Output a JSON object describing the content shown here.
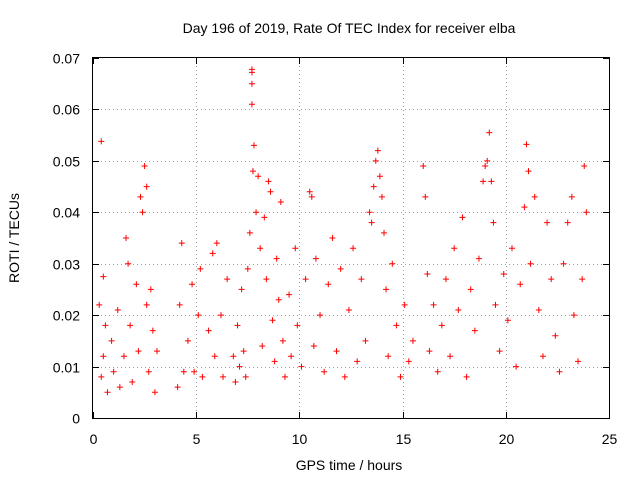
{
  "chart_data": {
    "type": "scatter",
    "title": "Day 196 of 2019, Rate Of TEC Index for receiver elba",
    "xlabel": "GPS time / hours",
    "ylabel": "ROTI / TECUs",
    "xlim": [
      0,
      25
    ],
    "ylim": [
      0,
      0.07
    ],
    "x_ticks": [
      0,
      5,
      10,
      15,
      20,
      25
    ],
    "x_tick_labels": [
      "0",
      "5",
      "10",
      "15",
      "20",
      "25"
    ],
    "y_ticks": [
      0,
      0.01,
      0.02,
      0.03,
      0.04,
      0.05,
      0.06,
      0.07
    ],
    "y_tick_labels": [
      "0",
      "0.01",
      "0.02",
      "0.03",
      "0.04",
      "0.05",
      "0.06",
      "0.07"
    ],
    "grid": true,
    "marker": "plus",
    "color": "#ff0000",
    "series": [
      {
        "name": "ROTI",
        "points": [
          [
            0.3,
            0.022
          ],
          [
            0.4,
            0.0538
          ],
          [
            0.5,
            0.0275
          ],
          [
            0.4,
            0.008
          ],
          [
            0.5,
            0.012
          ],
          [
            0.6,
            0.018
          ],
          [
            0.7,
            0.005
          ],
          [
            0.9,
            0.015
          ],
          [
            1.0,
            0.009
          ],
          [
            1.2,
            0.021
          ],
          [
            1.3,
            0.006
          ],
          [
            1.5,
            0.012
          ],
          [
            1.6,
            0.035
          ],
          [
            1.7,
            0.03
          ],
          [
            1.8,
            0.018
          ],
          [
            1.9,
            0.007
          ],
          [
            2.1,
            0.026
          ],
          [
            2.2,
            0.013
          ],
          [
            2.3,
            0.043
          ],
          [
            2.4,
            0.04
          ],
          [
            2.5,
            0.049
          ],
          [
            2.6,
            0.045
          ],
          [
            2.6,
            0.022
          ],
          [
            2.7,
            0.009
          ],
          [
            2.8,
            0.025
          ],
          [
            2.9,
            0.017
          ],
          [
            3.0,
            0.005
          ],
          [
            3.1,
            0.013
          ],
          [
            4.1,
            0.006
          ],
          [
            4.2,
            0.022
          ],
          [
            4.3,
            0.034
          ],
          [
            4.4,
            0.009
          ],
          [
            4.6,
            0.015
          ],
          [
            4.8,
            0.026
          ],
          [
            4.9,
            0.009
          ],
          [
            5.1,
            0.02
          ],
          [
            5.2,
            0.029
          ],
          [
            5.3,
            0.008
          ],
          [
            5.6,
            0.017
          ],
          [
            5.8,
            0.032
          ],
          [
            5.9,
            0.012
          ],
          [
            6.0,
            0.034
          ],
          [
            6.2,
            0.02
          ],
          [
            6.3,
            0.008
          ],
          [
            6.5,
            0.027
          ],
          [
            6.8,
            0.012
          ],
          [
            6.9,
            0.007
          ],
          [
            7.0,
            0.018
          ],
          [
            7.1,
            0.01
          ],
          [
            7.2,
            0.025
          ],
          [
            7.3,
            0.013
          ],
          [
            7.4,
            0.008
          ],
          [
            7.5,
            0.029
          ],
          [
            7.6,
            0.036
          ],
          [
            7.7,
            0.0678
          ],
          [
            7.7,
            0.0672
          ],
          [
            7.7,
            0.065
          ],
          [
            7.7,
            0.061
          ],
          [
            7.8,
            0.053
          ],
          [
            7.75,
            0.048
          ],
          [
            7.9,
            0.04
          ],
          [
            8.0,
            0.047
          ],
          [
            8.1,
            0.033
          ],
          [
            8.2,
            0.014
          ],
          [
            8.3,
            0.039
          ],
          [
            8.4,
            0.027
          ],
          [
            8.5,
            0.046
          ],
          [
            8.6,
            0.044
          ],
          [
            8.7,
            0.019
          ],
          [
            8.8,
            0.011
          ],
          [
            8.9,
            0.031
          ],
          [
            9.0,
            0.023
          ],
          [
            9.1,
            0.042
          ],
          [
            9.2,
            0.015
          ],
          [
            9.3,
            0.008
          ],
          [
            9.5,
            0.024
          ],
          [
            9.6,
            0.012
          ],
          [
            9.8,
            0.033
          ],
          [
            9.9,
            0.018
          ],
          [
            10.1,
            0.01
          ],
          [
            10.3,
            0.027
          ],
          [
            10.5,
            0.044
          ],
          [
            10.6,
            0.043
          ],
          [
            10.7,
            0.014
          ],
          [
            10.8,
            0.031
          ],
          [
            11.0,
            0.02
          ],
          [
            11.2,
            0.009
          ],
          [
            11.4,
            0.026
          ],
          [
            11.6,
            0.035
          ],
          [
            11.8,
            0.013
          ],
          [
            12.0,
            0.029
          ],
          [
            12.2,
            0.008
          ],
          [
            12.4,
            0.021
          ],
          [
            12.6,
            0.033
          ],
          [
            12.8,
            0.011
          ],
          [
            13.0,
            0.027
          ],
          [
            13.2,
            0.015
          ],
          [
            13.4,
            0.04
          ],
          [
            13.5,
            0.038
          ],
          [
            13.6,
            0.045
          ],
          [
            13.7,
            0.05
          ],
          [
            13.8,
            0.052
          ],
          [
            13.9,
            0.047
          ],
          [
            14.0,
            0.043
          ],
          [
            14.1,
            0.036
          ],
          [
            14.2,
            0.025
          ],
          [
            14.3,
            0.012
          ],
          [
            14.5,
            0.03
          ],
          [
            14.7,
            0.018
          ],
          [
            14.9,
            0.008
          ],
          [
            15.1,
            0.022
          ],
          [
            15.3,
            0.011
          ],
          [
            15.5,
            0.015
          ],
          [
            16.0,
            0.049
          ],
          [
            16.1,
            0.043
          ],
          [
            16.2,
            0.028
          ],
          [
            16.3,
            0.013
          ],
          [
            16.5,
            0.022
          ],
          [
            16.7,
            0.009
          ],
          [
            16.9,
            0.018
          ],
          [
            17.1,
            0.027
          ],
          [
            17.3,
            0.012
          ],
          [
            17.5,
            0.033
          ],
          [
            17.7,
            0.021
          ],
          [
            17.9,
            0.039
          ],
          [
            18.1,
            0.008
          ],
          [
            18.3,
            0.025
          ],
          [
            18.5,
            0.017
          ],
          [
            18.7,
            0.031
          ],
          [
            18.9,
            0.046
          ],
          [
            19.0,
            0.049
          ],
          [
            19.1,
            0.05
          ],
          [
            19.2,
            0.0555
          ],
          [
            19.3,
            0.046
          ],
          [
            19.4,
            0.038
          ],
          [
            19.5,
            0.022
          ],
          [
            19.7,
            0.013
          ],
          [
            19.9,
            0.028
          ],
          [
            20.1,
            0.019
          ],
          [
            20.3,
            0.033
          ],
          [
            20.5,
            0.01
          ],
          [
            20.7,
            0.026
          ],
          [
            20.9,
            0.041
          ],
          [
            21.0,
            0.0532
          ],
          [
            21.1,
            0.048
          ],
          [
            21.2,
            0.03
          ],
          [
            21.4,
            0.043
          ],
          [
            21.6,
            0.021
          ],
          [
            21.8,
            0.012
          ],
          [
            22.0,
            0.038
          ],
          [
            22.2,
            0.027
          ],
          [
            22.4,
            0.016
          ],
          [
            22.6,
            0.009
          ],
          [
            22.8,
            0.03
          ],
          [
            23.0,
            0.038
          ],
          [
            23.2,
            0.043
          ],
          [
            23.3,
            0.02
          ],
          [
            23.5,
            0.011
          ],
          [
            23.7,
            0.027
          ],
          [
            23.8,
            0.049
          ],
          [
            23.9,
            0.04
          ]
        ]
      }
    ]
  }
}
